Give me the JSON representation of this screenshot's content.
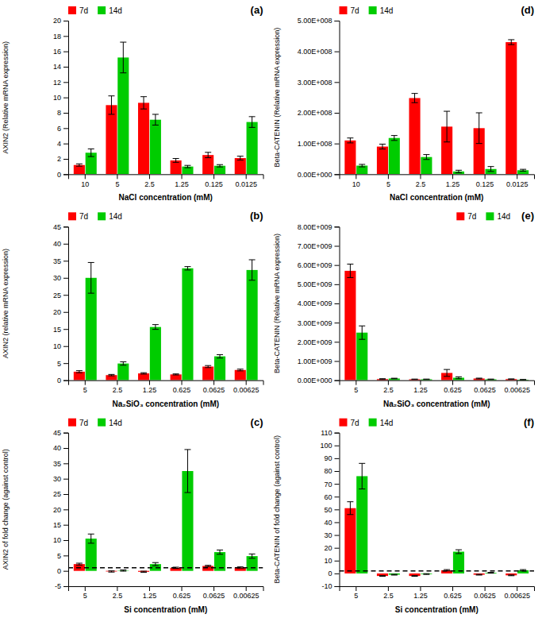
{
  "chart_data": [
    {
      "type": "bar",
      "title": "(a)",
      "categories": [
        "10",
        "5",
        "2.5",
        "1.25",
        "0.125",
        "0.0125"
      ],
      "xlabel": "NaCl concentration (mM)",
      "ylabel": "AXIN2 (Relative mRNA expression)",
      "ylim": [
        0,
        20
      ],
      "yticks": [
        0,
        2,
        4,
        6,
        8,
        10,
        12,
        14,
        16,
        18,
        20
      ],
      "series": [
        {
          "name": "7d",
          "color": "#ff0000",
          "values": [
            1.2,
            9.0,
            9.3,
            1.8,
            2.5,
            2.1
          ],
          "errors": [
            0.15,
            1.2,
            0.8,
            0.25,
            0.35,
            0.25
          ]
        },
        {
          "name": "14d",
          "color": "#00cc00",
          "values": [
            2.8,
            15.2,
            7.1,
            1.0,
            1.1,
            6.8
          ],
          "errors": [
            0.5,
            2.0,
            0.7,
            0.15,
            0.15,
            0.7
          ]
        }
      ],
      "legend": "upper left",
      "grid": false
    },
    {
      "type": "bar",
      "title": "(d)",
      "categories": [
        "10",
        "5",
        "2.5",
        "1.25",
        "0.125",
        "0.0125"
      ],
      "xlabel": "NaCl concentration (mM)",
      "ylabel": "Beta-CATENIN (Relative mRNA expression)",
      "ylim": [
        0,
        500000000.0
      ],
      "yticks": [
        {
          "value": 0,
          "label": "0.00E+000"
        },
        {
          "value": 100000000.0,
          "label": "1.00E+008"
        },
        {
          "value": 200000000.0,
          "label": "2.00E+008"
        },
        {
          "value": 300000000.0,
          "label": "3.00E+008"
        },
        {
          "value": 400000000.0,
          "label": "4.00E+008"
        },
        {
          "value": 500000000.0,
          "label": "5.00E+008"
        }
      ],
      "series": [
        {
          "name": "7d",
          "color": "#ff0000",
          "values": [
            110000000.0,
            90000000.0,
            248000000.0,
            155000000.0,
            150000000.0,
            430000000.0
          ],
          "errors": [
            8000000.0,
            8000000.0,
            15000000.0,
            50000000.0,
            50000000.0,
            8000000.0
          ]
        },
        {
          "name": "14d",
          "color": "#00cc00",
          "values": [
            28000000.0,
            118000000.0,
            56000000.0,
            9000000.0,
            17000000.0,
            13000000.0
          ],
          "errors": [
            4000000.0,
            8000000.0,
            8000000.0,
            4000000.0,
            8000000.0,
            3000000.0
          ]
        }
      ],
      "legend": "upper left",
      "grid": false
    },
    {
      "type": "bar",
      "title": "(b)",
      "categories": [
        "5",
        "2.5",
        "1.25",
        "0.625",
        "0.0625",
        "0.00625"
      ],
      "xlabel": "Na₂SiO₃ concentration (mM)",
      "ylabel": "AXIN2 (relative mRNA expression)",
      "ylim": [
        0,
        45
      ],
      "yticks": [
        0,
        5,
        10,
        15,
        20,
        25,
        30,
        35,
        40,
        45
      ],
      "series": [
        {
          "name": "7d",
          "color": "#ff0000",
          "values": [
            2.5,
            1.5,
            2.0,
            1.7,
            4.0,
            3.0
          ],
          "errors": [
            0.3,
            0.2,
            0.2,
            0.15,
            0.3,
            0.25
          ]
        },
        {
          "name": "14d",
          "color": "#00cc00",
          "values": [
            30.0,
            4.9,
            15.6,
            32.8,
            7.0,
            32.3
          ],
          "errors": [
            4.5,
            0.5,
            0.7,
            0.5,
            0.5,
            3.0
          ]
        }
      ],
      "legend": "upper left",
      "grid": false
    },
    {
      "type": "bar",
      "title": "(e)",
      "categories": [
        "5",
        "2.5",
        "1.25",
        "0.625",
        "0.0625",
        "0.00625"
      ],
      "xlabel": "Na₂SiO₃ concentration (mM)",
      "ylabel": "Beta-CATENIN (Relative mRNA expression)",
      "ylim": [
        0,
        8000000000.0
      ],
      "yticks": [
        {
          "value": 0,
          "label": "0.00E+000"
        },
        {
          "value": 1000000000.0,
          "label": "1.00E+009"
        },
        {
          "value": 2000000000.0,
          "label": "2.00E+009"
        },
        {
          "value": 3000000000.0,
          "label": "3.00E+009"
        },
        {
          "value": 4000000000.0,
          "label": "4.00E+009"
        },
        {
          "value": 5000000000.0,
          "label": "5.00E+009"
        },
        {
          "value": 6000000000.0,
          "label": "6.00E+009"
        },
        {
          "value": 7000000000.0,
          "label": "7.00E+009"
        },
        {
          "value": 8000000000.0,
          "label": "8.00E+009"
        }
      ],
      "series": [
        {
          "name": "7d",
          "color": "#ff0000",
          "values": [
            5700000000.0,
            60000000.0,
            50000000.0,
            380000000.0,
            90000000.0,
            60000000.0
          ],
          "errors": [
            350000000.0,
            20000000.0,
            10000000.0,
            180000000.0,
            20000000.0,
            10000000.0
          ]
        },
        {
          "name": "14d",
          "color": "#00cc00",
          "values": [
            2480000000.0,
            90000000.0,
            50000000.0,
            130000000.0,
            50000000.0,
            30000000.0
          ],
          "errors": [
            350000000.0,
            15000000.0,
            10000000.0,
            50000000.0,
            10000000.0,
            10000000.0
          ]
        }
      ],
      "legend": "upper right",
      "grid": false
    },
    {
      "type": "bar",
      "title": "(c)",
      "categories": [
        "5",
        "2.5",
        "1.25",
        "0.625",
        "0.0625",
        "0.00625"
      ],
      "xlabel": "Si concentration (mM)",
      "ylabel": "AXIN2 of fold change (against control)",
      "ylim": [
        -5,
        45
      ],
      "yticks": [
        -5,
        0,
        5,
        10,
        15,
        20,
        25,
        30,
        35,
        40,
        45
      ],
      "series": [
        {
          "name": "7d",
          "color": "#ff0000",
          "values": [
            2.2,
            -0.2,
            -0.3,
            1.0,
            1.6,
            1.1
          ],
          "errors": [
            0.3,
            0.2,
            0.2,
            0.2,
            0.2,
            0.2
          ]
        },
        {
          "name": "14d",
          "color": "#00cc00",
          "values": [
            10.5,
            0.1,
            2.2,
            32.5,
            6.1,
            4.8
          ],
          "errors": [
            1.5,
            0.2,
            0.5,
            7.0,
            0.7,
            0.7
          ]
        }
      ],
      "reference_line": 1,
      "legend": "upper left",
      "grid": false
    },
    {
      "type": "bar",
      "title": "(f)",
      "categories": [
        "5",
        "2.5",
        "1.25",
        "0.625",
        "0.0625",
        "0.00625"
      ],
      "xlabel": "Si concentration (mM)",
      "ylabel": "Beta-CATENIN of fold change (against control)",
      "ylim": [
        -10,
        110
      ],
      "yticks": [
        -10,
        0,
        10,
        20,
        30,
        40,
        50,
        60,
        70,
        80,
        90,
        100,
        110
      ],
      "series": [
        {
          "name": "7d",
          "color": "#ff0000",
          "values": [
            51.0,
            -2.0,
            -2.0,
            2.5,
            -1.0,
            -1.5
          ],
          "errors": [
            5.0,
            0.3,
            0.3,
            0.5,
            0.3,
            0.3
          ]
        },
        {
          "name": "14d",
          "color": "#00cc00",
          "values": [
            76.0,
            -1.0,
            -0.5,
            17.0,
            0.5,
            2.5
          ],
          "errors": [
            10.0,
            0.3,
            0.3,
            1.5,
            0.3,
            0.5
          ]
        }
      ],
      "reference_line": 2,
      "legend": "upper left",
      "grid": false
    }
  ]
}
